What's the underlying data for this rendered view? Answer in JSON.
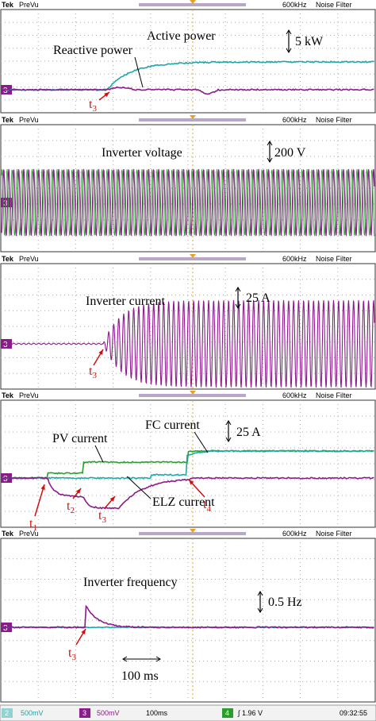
{
  "header": {
    "brand": "Tek",
    "mode": "PreVu",
    "bandwidth": "600kHz",
    "filter": "Noise Filter"
  },
  "panels": [
    {
      "channel": "3",
      "scale": "5 kW",
      "labels": [
        "Active power",
        "Reactive power"
      ],
      "markers": [
        {
          "t": "t",
          "sub": "3"
        }
      ]
    },
    {
      "channel": "3",
      "scale": "200 V",
      "labels": [
        "Inverter voltage"
      ]
    },
    {
      "channel": "3",
      "scale": "25 A",
      "labels": [
        "Inverter current"
      ],
      "markers": [
        {
          "t": "t",
          "sub": "3"
        }
      ]
    },
    {
      "channel": "3",
      "scale": "25 A",
      "labels": [
        "FC current",
        "PV current",
        "ELZ current"
      ],
      "markers": [
        {
          "t": "t",
          "sub": "1"
        },
        {
          "t": "t",
          "sub": "2"
        },
        {
          "t": "t",
          "sub": "3"
        },
        {
          "t": "t",
          "sub": "4"
        }
      ]
    },
    {
      "channel": "3",
      "scale": "0.5 Hz",
      "labels": [
        "Inverter frequency"
      ],
      "markers": [
        {
          "t": "t",
          "sub": "3"
        }
      ],
      "time_scale": "100 ms"
    }
  ],
  "status_bar": {
    "ch2": "2",
    "ch2_scale": "500mV",
    "ch3": "3",
    "ch3_scale": "500mV",
    "timebase": "100ms",
    "ch4": "4",
    "trigger": "∫ 1.96 V",
    "time": "09:32:55"
  }
}
